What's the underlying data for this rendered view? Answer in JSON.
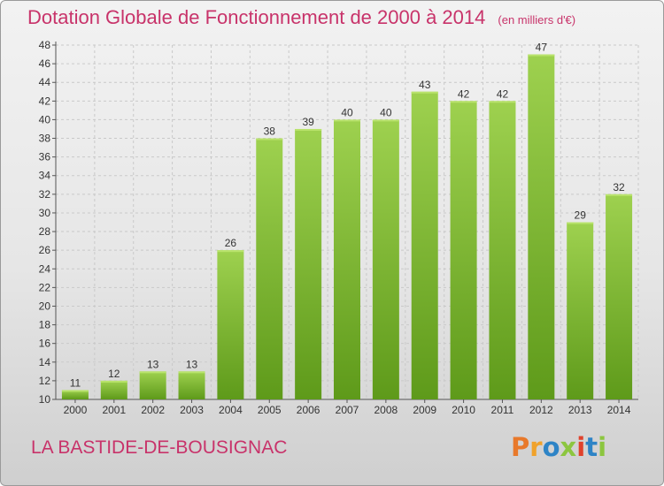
{
  "header": {
    "title": "Dotation Globale de Fonctionnement de 2000 à 2014",
    "subtitle": "(en milliers d'€)"
  },
  "footer": {
    "commune": "LA BASTIDE-DE-BOUSIGNAC",
    "logo_text": "Proxiti",
    "logo_colors": [
      "#e8792b",
      "#f0a22b",
      "#2e84c6",
      "#8cc63f",
      "#e0422c",
      "#2e84c6",
      "#8cc63f"
    ]
  },
  "colors": {
    "title": "#c8336a",
    "bar_top": "#9ed14f",
    "bar_bottom": "#5e9a1a",
    "axis_text": "#333333",
    "grid": "#c9c9c9"
  },
  "chart_data": {
    "type": "bar",
    "title": "Dotation Globale de Fonctionnement de 2000 à 2014",
    "subtitle": "(en milliers d'€)",
    "categories": [
      "2000",
      "2001",
      "2002",
      "2003",
      "2004",
      "2005",
      "2006",
      "2007",
      "2008",
      "2009",
      "2010",
      "2011",
      "2012",
      "2013",
      "2014"
    ],
    "values": [
      11,
      12,
      13,
      13,
      26,
      38,
      39,
      40,
      40,
      43,
      42,
      42,
      47,
      29,
      32
    ],
    "xlabel": "",
    "ylabel": "",
    "ylim": [
      10,
      48
    ],
    "yticks": [
      10,
      12,
      14,
      16,
      18,
      20,
      22,
      24,
      26,
      28,
      30,
      32,
      34,
      36,
      38,
      40,
      42,
      44,
      46,
      48
    ],
    "grid": true,
    "legend": "none"
  }
}
